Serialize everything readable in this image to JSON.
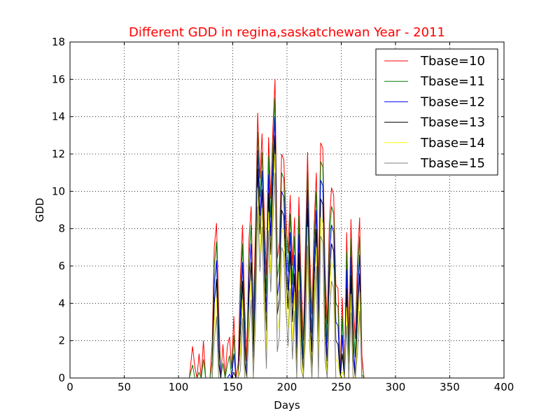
{
  "chart_data": {
    "type": "line",
    "title": "Different GDD in regina,saskatchewan Year - 2011",
    "title_color": "#ff0000",
    "xlabel": "Days",
    "ylabel": "GDD",
    "xlim": [
      0,
      400
    ],
    "ylim": [
      0,
      18
    ],
    "xticks": [
      "0",
      "50",
      "100",
      "150",
      "200",
      "250",
      "300",
      "350",
      "400"
    ],
    "yticks": [
      "0",
      "2",
      "4",
      "6",
      "8",
      "10",
      "12",
      "14",
      "16",
      "18"
    ],
    "grid": true,
    "legend_position": "top-right",
    "x": [
      0,
      110,
      113,
      115,
      117,
      119,
      121,
      123,
      125,
      127,
      129,
      131,
      133,
      135,
      137,
      139,
      141,
      143,
      145,
      147,
      149,
      151,
      153,
      155,
      157,
      159,
      161,
      163,
      165,
      167,
      169,
      171,
      173,
      175,
      177,
      179,
      181,
      183,
      185,
      187,
      189,
      191,
      193,
      195,
      197,
      199,
      201,
      203,
      205,
      207,
      209,
      211,
      213,
      215,
      217,
      219,
      221,
      223,
      225,
      227,
      229,
      231,
      233,
      235,
      237,
      239,
      241,
      243,
      245,
      247,
      249,
      251,
      253,
      255,
      257,
      259,
      261,
      263,
      265,
      267,
      269,
      271,
      273,
      275,
      277,
      279,
      281,
      283,
      365
    ],
    "series": [
      {
        "name": "Tbase=10",
        "color": "#ff0000",
        "values": [
          0,
          0,
          1.7,
          0.6,
          0,
          1.3,
          0,
          2.0,
          0,
          0,
          0,
          1.9,
          7.0,
          8.3,
          3.8,
          0,
          1.8,
          0,
          1.7,
          2.2,
          0.5,
          3.3,
          0,
          0.8,
          5.4,
          8.2,
          3.8,
          0.9,
          7.5,
          9.2,
          3.4,
          8.1,
          14.2,
          10.7,
          13.1,
          8.9,
          5.5,
          12.9,
          9.6,
          13.4,
          16.0,
          6.4,
          7.2,
          12.0,
          11.7,
          8.7,
          6.7,
          9.8,
          6.0,
          8.6,
          3.6,
          9.7,
          5.5,
          2.0,
          7.0,
          12.1,
          6.6,
          3.4,
          8.2,
          11.0,
          5.0,
          12.6,
          12.3,
          6.0,
          2.9,
          8.3,
          10.2,
          9.8,
          5.0,
          4.8,
          0.2,
          4.3,
          0,
          7.8,
          1.9,
          8.5,
          4.1,
          2.1,
          6.4,
          8.6,
          1.2,
          0,
          0,
          0,
          0,
          0,
          0,
          0,
          0
        ]
      },
      {
        "name": "Tbase=11",
        "color": "#008000",
        "values": [
          0,
          0,
          0.7,
          0,
          0,
          0.3,
          0,
          1.0,
          0,
          0,
          0,
          0.9,
          6.0,
          7.3,
          2.8,
          0,
          0.8,
          0,
          0.7,
          1.2,
          0,
          2.3,
          0,
          0,
          4.4,
          7.2,
          2.8,
          0,
          6.5,
          8.2,
          2.4,
          7.1,
          13.2,
          9.7,
          12.1,
          7.9,
          4.5,
          11.9,
          8.6,
          12.4,
          15.0,
          5.4,
          6.2,
          11.0,
          10.7,
          7.7,
          5.7,
          8.8,
          5.0,
          7.6,
          2.6,
          8.7,
          4.5,
          1.0,
          6.0,
          11.1,
          5.6,
          2.4,
          7.2,
          10.0,
          4.0,
          11.6,
          11.3,
          5.0,
          1.9,
          7.3,
          9.2,
          8.8,
          4.0,
          3.8,
          0,
          3.3,
          0,
          6.8,
          0.9,
          7.5,
          3.1,
          1.1,
          5.4,
          7.6,
          0.2,
          0,
          0,
          0,
          0,
          0,
          0,
          0,
          0
        ]
      },
      {
        "name": "Tbase=12",
        "color": "#0000ff",
        "values": [
          0,
          0,
          0,
          0,
          0,
          0,
          0,
          0,
          0,
          0,
          0,
          0,
          5.0,
          6.3,
          1.8,
          0,
          0,
          0,
          0,
          0.2,
          0,
          1.3,
          0,
          0,
          3.4,
          6.2,
          1.8,
          0,
          5.5,
          7.2,
          1.4,
          6.1,
          12.2,
          8.7,
          11.1,
          6.9,
          3.5,
          10.9,
          7.6,
          11.4,
          14.0,
          4.4,
          5.2,
          10.0,
          9.7,
          6.7,
          4.7,
          7.8,
          4.0,
          6.6,
          1.6,
          7.7,
          3.5,
          0,
          5.0,
          10.1,
          4.6,
          1.4,
          6.2,
          9.0,
          3.0,
          10.6,
          10.3,
          4.0,
          0.9,
          6.3,
          8.2,
          7.8,
          3.0,
          2.8,
          0,
          2.3,
          0,
          5.8,
          0,
          6.5,
          2.1,
          0.1,
          4.4,
          6.6,
          0,
          0,
          0,
          0,
          0,
          0,
          0,
          0,
          0
        ]
      },
      {
        "name": "Tbase=13",
        "color": "#000000",
        "values": [
          0,
          0,
          0,
          0,
          0,
          0,
          0,
          0,
          0,
          0,
          0,
          0,
          4.0,
          5.3,
          0.8,
          0,
          0,
          0,
          0,
          0,
          0,
          0.3,
          0,
          0,
          2.4,
          5.2,
          0.8,
          0,
          4.5,
          6.2,
          0.4,
          5.1,
          11.2,
          7.7,
          10.1,
          5.9,
          2.5,
          9.9,
          6.6,
          10.4,
          13.0,
          3.4,
          4.2,
          9.0,
          8.7,
          5.7,
          3.7,
          6.8,
          3.0,
          5.6,
          0.6,
          6.7,
          2.5,
          0,
          4.0,
          9.1,
          3.6,
          0.4,
          5.2,
          8.0,
          2.0,
          9.6,
          9.3,
          3.0,
          0,
          5.3,
          7.2,
          6.8,
          2.0,
          1.8,
          0,
          1.3,
          0,
          4.8,
          0,
          5.5,
          1.1,
          0,
          3.4,
          5.6,
          0,
          0,
          0,
          0,
          0,
          0,
          0,
          0,
          0
        ]
      },
      {
        "name": "Tbase=14",
        "color": "#ffff00",
        "values": [
          0,
          0,
          0,
          0,
          0,
          0,
          0,
          0,
          0,
          0,
          0,
          0,
          3.0,
          4.3,
          0,
          0,
          0,
          0,
          0,
          0,
          0,
          0,
          0,
          0,
          1.4,
          4.2,
          0,
          0,
          3.5,
          5.2,
          0,
          4.1,
          10.2,
          6.7,
          9.1,
          4.9,
          1.5,
          8.9,
          5.6,
          9.4,
          12.0,
          2.4,
          3.2,
          8.0,
          7.7,
          4.7,
          2.7,
          5.8,
          2.0,
          4.6,
          0,
          5.7,
          1.5,
          0,
          3.0,
          8.1,
          2.6,
          0,
          4.2,
          7.0,
          1.0,
          8.6,
          8.3,
          2.0,
          0,
          4.3,
          6.2,
          5.8,
          1.0,
          0.8,
          0,
          0.3,
          0,
          3.8,
          0,
          4.5,
          0.1,
          0,
          2.4,
          4.6,
          0,
          0,
          0,
          0,
          0,
          0,
          0,
          0,
          0
        ]
      },
      {
        "name": "Tbase=15",
        "color": "#808080",
        "values": [
          0,
          0,
          0,
          0,
          0,
          0,
          0,
          0,
          0,
          0,
          0,
          0,
          2.0,
          3.3,
          0,
          0,
          0,
          0,
          0,
          0,
          0,
          0,
          0,
          0,
          0.4,
          3.2,
          0,
          0,
          2.5,
          4.2,
          0,
          3.1,
          9.2,
          5.7,
          8.1,
          3.9,
          0.5,
          7.9,
          4.6,
          8.4,
          11.0,
          1.4,
          2.2,
          7.0,
          6.7,
          3.7,
          1.7,
          4.8,
          1.0,
          3.6,
          0,
          4.7,
          0.5,
          0,
          2.0,
          7.1,
          1.6,
          0,
          3.2,
          6.0,
          0,
          7.6,
          7.3,
          1.0,
          0,
          3.3,
          5.2,
          4.8,
          0,
          0,
          0,
          0,
          0,
          2.8,
          0,
          3.5,
          0,
          0,
          1.4,
          3.6,
          0,
          0,
          0,
          0,
          0,
          0,
          0,
          0,
          0
        ]
      }
    ]
  }
}
